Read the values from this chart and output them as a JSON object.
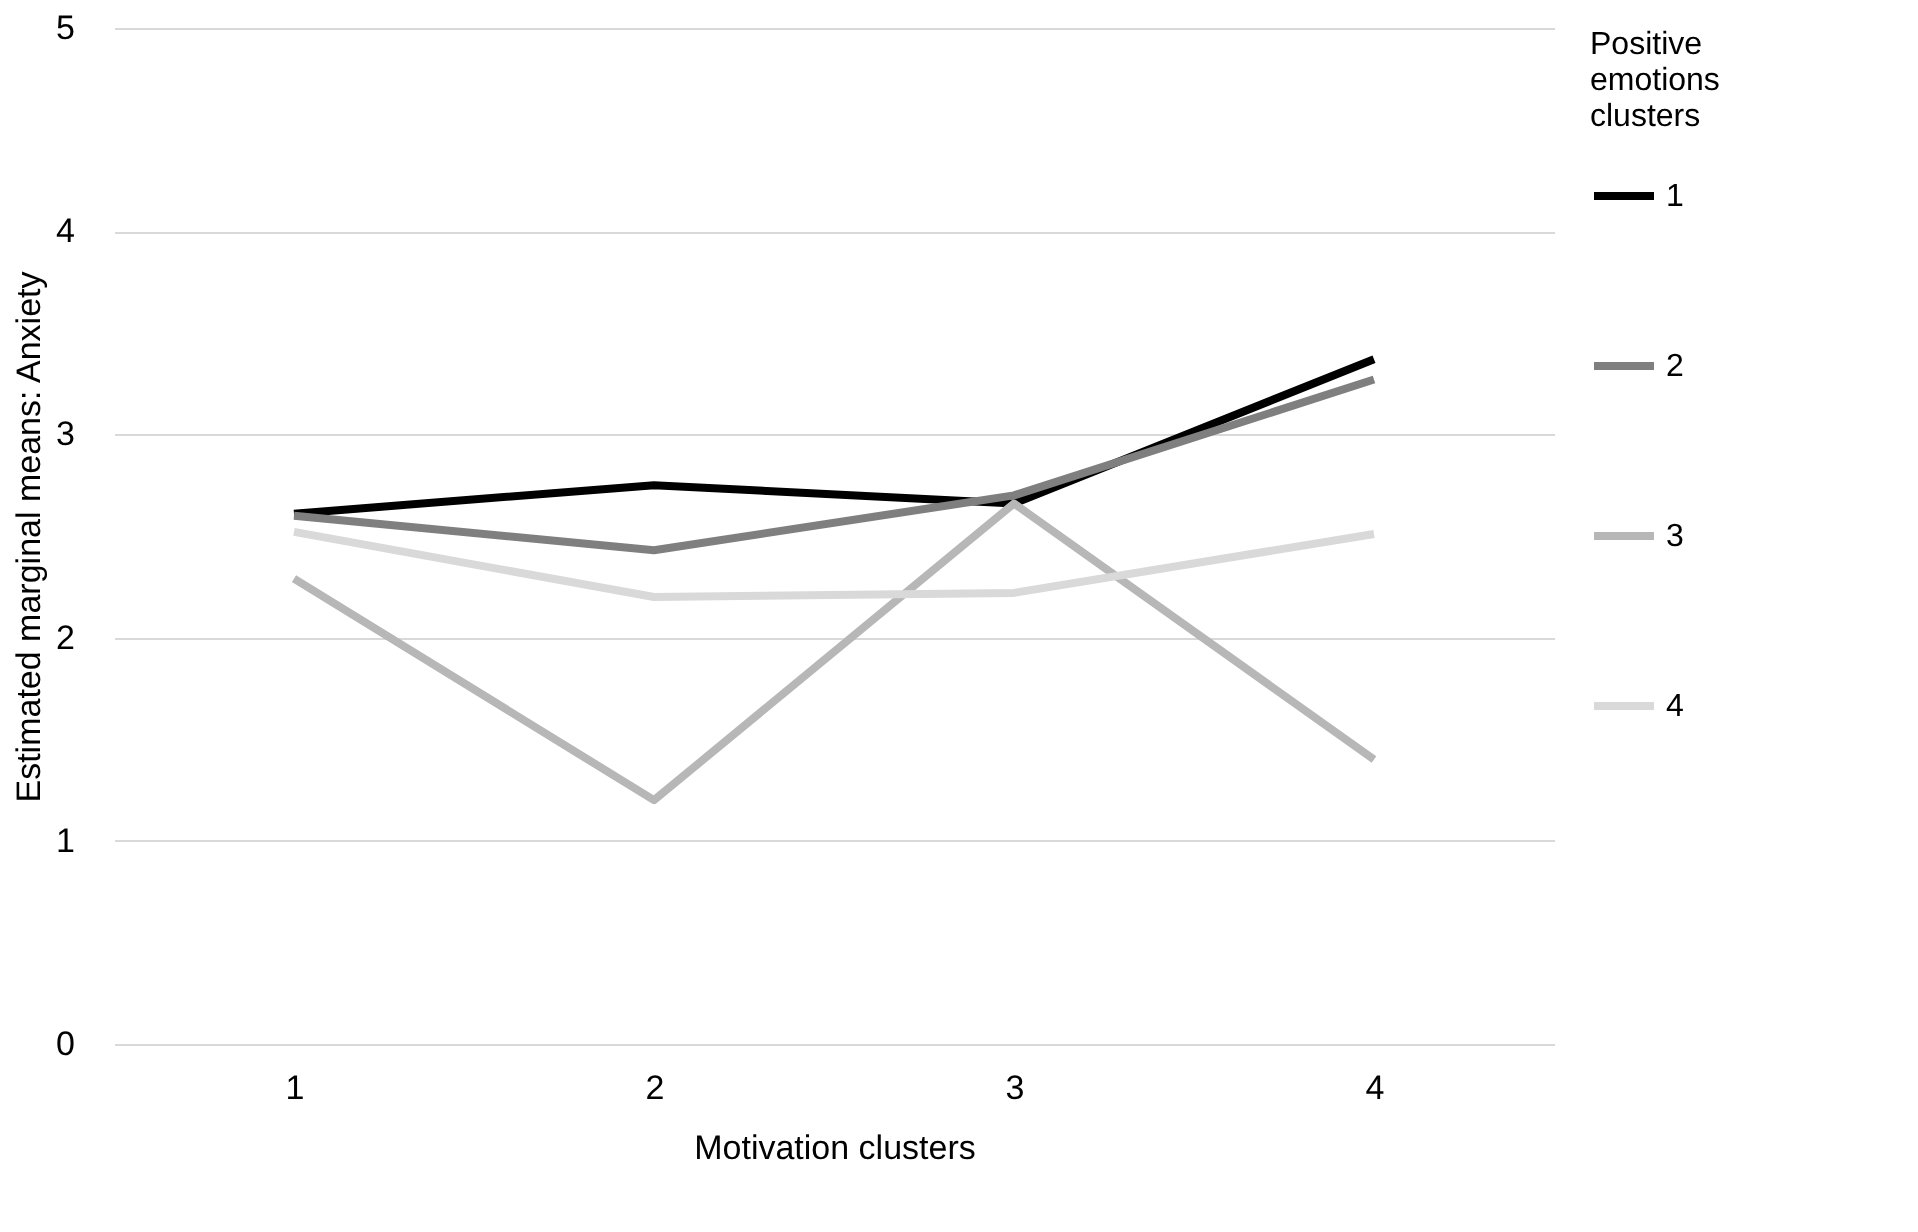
{
  "chart_data": {
    "type": "line",
    "xlabel": "Motivation clusters",
    "ylabel": "Estimated marginal means: Anxiety",
    "legend_title": "Positive emotions clusters",
    "categories": [
      "1",
      "2",
      "3",
      "4"
    ],
    "series": [
      {
        "name": "1",
        "color": "#000000",
        "values": [
          2.61,
          2.75,
          2.66,
          3.37
        ]
      },
      {
        "name": "2",
        "color": "#7f7f7f",
        "values": [
          2.6,
          2.43,
          2.7,
          3.27
        ]
      },
      {
        "name": "3",
        "color": "#b7b7b7",
        "values": [
          2.29,
          1.2,
          2.66,
          1.4
        ]
      },
      {
        "name": "4",
        "color": "#d9d9d9",
        "values": [
          2.52,
          2.2,
          2.22,
          2.51
        ]
      }
    ],
    "ylim": [
      0,
      5
    ],
    "yticks": [
      0,
      1,
      2,
      3,
      4,
      5
    ],
    "grid": "y",
    "legend": "right",
    "marker": "none",
    "line_style": "solid"
  }
}
